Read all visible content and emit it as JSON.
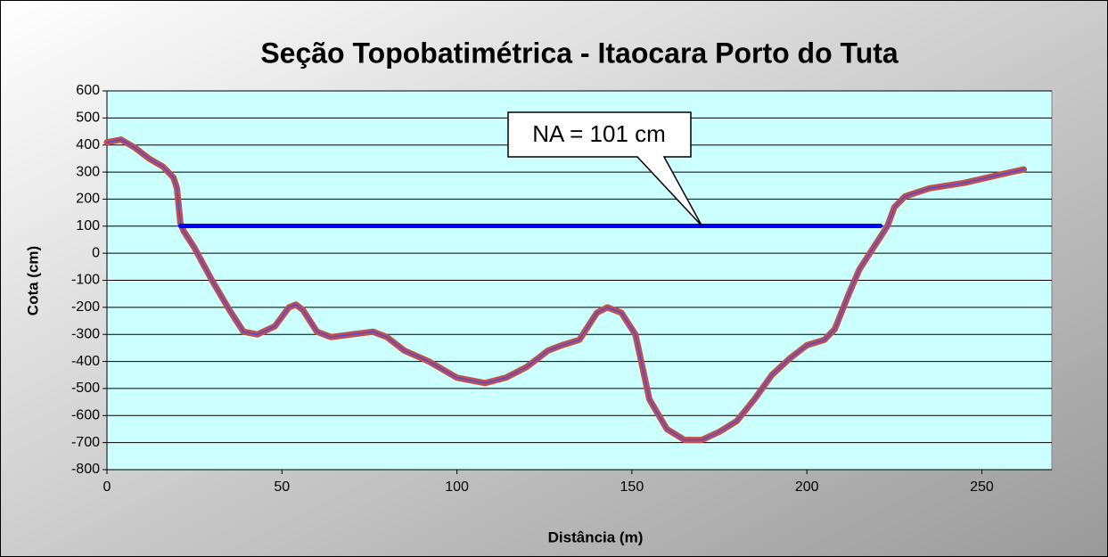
{
  "chart_data": {
    "type": "line",
    "title": "Seção Topobatimétrica - Itaocara Porto do Tuta",
    "xlabel": "Distância (m)",
    "ylabel": "Cota (cm)",
    "xlim": [
      0,
      270
    ],
    "xticks": [
      0,
      50,
      100,
      150,
      200,
      250
    ],
    "ylim": [
      -800,
      600
    ],
    "yticks": [
      -800,
      -700,
      -600,
      -500,
      -400,
      -300,
      -200,
      -100,
      0,
      100,
      200,
      300,
      400,
      500,
      600
    ],
    "grid": true,
    "series": [
      {
        "color": "#c0504d",
        "inner_color": "#4a4adf",
        "x": [
          0,
          4,
          8,
          12,
          16,
          19,
          20,
          21,
          22,
          25,
          30,
          35,
          39,
          43,
          48,
          52,
          54,
          56,
          60,
          64,
          70,
          76,
          80,
          85,
          92,
          100,
          108,
          114,
          120,
          126,
          130,
          135,
          140,
          143,
          147,
          151,
          155,
          160,
          165,
          170,
          175,
          180,
          185,
          190,
          195,
          200,
          205,
          208,
          212,
          215,
          218,
          221,
          223,
          225,
          228,
          235,
          245,
          255,
          262
        ],
        "values": [
          410,
          420,
          390,
          350,
          320,
          280,
          240,
          110,
          80,
          20,
          -100,
          -210,
          -290,
          -300,
          -270,
          -200,
          -190,
          -210,
          -290,
          -310,
          -300,
          -290,
          -310,
          -360,
          -400,
          -460,
          -480,
          -460,
          -420,
          -360,
          -340,
          -320,
          -220,
          -200,
          -220,
          -300,
          -540,
          -650,
          -690,
          -690,
          -660,
          -620,
          -540,
          -450,
          -390,
          -340,
          -320,
          -280,
          -150,
          -60,
          0,
          60,
          100,
          170,
          210,
          240,
          260,
          290,
          310
        ]
      },
      {
        "color": "#0000ff",
        "x": [
          21,
          221
        ],
        "values": [
          101,
          101
        ]
      }
    ],
    "annotation": {
      "text": "NA = 101 cm",
      "x": 170,
      "y": 101
    }
  }
}
